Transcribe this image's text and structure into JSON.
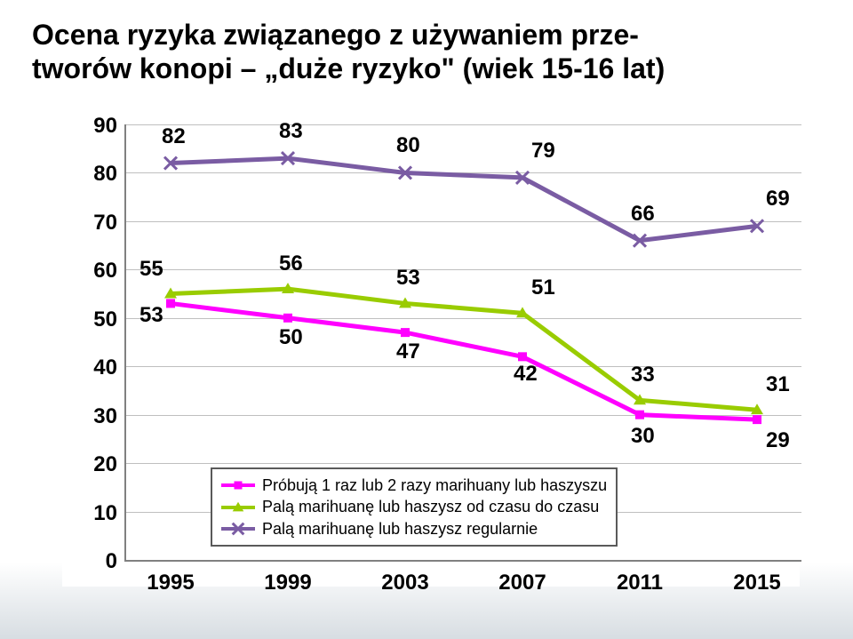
{
  "title_line1": "Ocena ryzyka związanego z używaniem prze-",
  "title_line2": "tworów konopi – „duże ryzyko\" (wiek 15-16 lat)",
  "title_fontsize": 32,
  "chart": {
    "type": "line",
    "x_categories": [
      "1995",
      "1999",
      "2003",
      "2007",
      "2011",
      "2015"
    ],
    "y_ticks": [
      0,
      10,
      20,
      30,
      40,
      50,
      60,
      70,
      80,
      90
    ],
    "ylim": [
      0,
      90
    ],
    "axis_label_fontsize": 24,
    "data_label_fontsize": 24,
    "grid_color": "#bfbfbf",
    "axis_color": "#808080",
    "background_color": "#ffffff",
    "line_width": 5,
    "marker_size": 10,
    "series": [
      {
        "name": "Próbują 1 raz lub 2 razy marihuany lub haszyszu",
        "color": "#ff00ff",
        "marker": "square",
        "values": [
          53,
          50,
          47,
          42,
          30,
          29
        ]
      },
      {
        "name": "Palą marihuanę lub haszysz od czasu do czasu",
        "color": "#99cc00",
        "marker": "triangle",
        "values": [
          55,
          56,
          53,
          51,
          33,
          31
        ]
      },
      {
        "name": "Palą marihuanę lub haszysz regularnie",
        "color": "#7a5ca3",
        "marker": "x",
        "values": [
          82,
          83,
          80,
          79,
          66,
          69
        ]
      }
    ],
    "legend": {
      "position": "bottom-left-inside",
      "fontsize": 18,
      "border_color": "#5a5a5a",
      "background": "#ffffff"
    }
  }
}
